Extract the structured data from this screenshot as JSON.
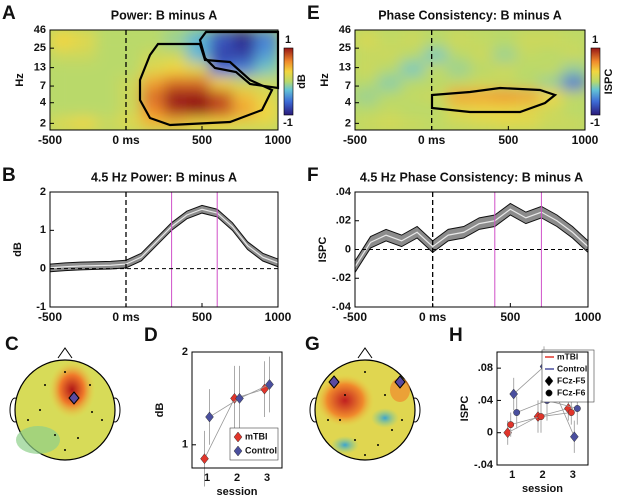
{
  "chart_data": [
    {
      "type": "heatmap",
      "panel": "A",
      "title": "Power: B minus A",
      "ylabel": "Hz",
      "colorbar_label": "dB",
      "xbins": [
        -500,
        -350,
        -200,
        -50,
        100,
        250,
        400,
        550,
        700,
        850,
        1000
      ],
      "ybins": [
        1.6,
        2.5,
        4,
        6.3,
        10,
        16,
        25,
        46
      ],
      "ylog": true,
      "values": [
        [
          0.2,
          0.3,
          0.1,
          0.2,
          0.4,
          0.4,
          0.3,
          0.3,
          0.2,
          0.2
        ],
        [
          0,
          0,
          0,
          0.1,
          0.6,
          0.9,
          1,
          0.8,
          0.5,
          0.3
        ],
        [
          0,
          0,
          0,
          0.1,
          0.7,
          1,
          1,
          0.8,
          0.4,
          0.2
        ],
        [
          0,
          0,
          0,
          0.1,
          0.5,
          0.7,
          0.7,
          0.3,
          0.1,
          0.1
        ],
        [
          0,
          0,
          0,
          0,
          0.2,
          0.3,
          0.2,
          -0.6,
          -0.5,
          -0.2
        ],
        [
          0.1,
          0.1,
          0,
          0,
          0.1,
          0.1,
          -0.3,
          -0.8,
          -0.8,
          -0.4
        ],
        [
          0.3,
          0.2,
          0,
          0,
          0,
          -0.1,
          -0.3,
          -0.7,
          -0.9,
          -0.5
        ]
      ],
      "xlim": [
        -500,
        1000
      ],
      "xticks": [
        -500,
        {
          "value": 0,
          "label": "0 ms"
        },
        500,
        1000
      ],
      "ylim": [
        1.6,
        46
      ],
      "yticks": [
        2,
        4,
        7,
        13,
        25,
        46
      ],
      "clim": [
        -1,
        1
      ],
      "cticks": [
        -1,
        1
      ]
    },
    {
      "type": "heatmap",
      "panel": "E",
      "title": "Phase Consistency: B minus A",
      "ylabel": "Hz",
      "colorbar_label": "ISPC",
      "xbins": [
        -500,
        -350,
        -200,
        -50,
        100,
        250,
        400,
        550,
        700,
        850,
        1000
      ],
      "ybins": [
        1.6,
        2.5,
        4,
        6.3,
        10,
        16,
        25,
        46
      ],
      "ylog": true,
      "values": [
        [
          0.1,
          0.15,
          0.1,
          0.05,
          0.1,
          0.15,
          0.2,
          0.2,
          0.1,
          0.1
        ],
        [
          0,
          0.05,
          0,
          0,
          0.2,
          0.25,
          0.25,
          0.2,
          0.1,
          0
        ],
        [
          -0.1,
          0,
          0.05,
          0.1,
          0.5,
          0.5,
          0.55,
          0.5,
          0.3,
          0.05
        ],
        [
          0,
          -0.15,
          0,
          0,
          0.05,
          0.1,
          0.05,
          0,
          -0.1,
          -0.6
        ],
        [
          0.1,
          0,
          -0.2,
          0.05,
          -0.1,
          0,
          0.1,
          0,
          0.05,
          -0.1
        ],
        [
          0.05,
          0.1,
          0,
          -0.2,
          0,
          0.1,
          -0.1,
          0.05,
          0,
          0.1
        ],
        [
          0.15,
          0.05,
          0.1,
          0,
          0.1,
          0.05,
          0,
          0.1,
          0.1,
          0.05
        ]
      ],
      "xlim": [
        -500,
        1000
      ],
      "xticks": [
        -500,
        {
          "value": 0,
          "label": "0 ms"
        },
        500,
        1000
      ],
      "ylim": [
        1.6,
        46
      ],
      "yticks": [
        2,
        4,
        7,
        13,
        25,
        46
      ],
      "clim": [
        -1,
        1
      ],
      "cticks": [
        -1,
        1
      ]
    },
    {
      "type": "line",
      "panel": "B",
      "title": "4.5 Hz Power: B minus A",
      "ylabel": "dB",
      "x": [
        -500,
        -400,
        -300,
        -200,
        -100,
        0,
        100,
        200,
        300,
        400,
        500,
        600,
        700,
        800,
        900,
        1000
      ],
      "values": [
        0.02,
        0.05,
        0.07,
        0.08,
        0.09,
        0.12,
        0.3,
        0.7,
        1.1,
        1.4,
        1.55,
        1.45,
        1.1,
        0.6,
        0.3,
        0.15
      ],
      "error": 0.1,
      "vlines": [
        300,
        600
      ],
      "xlim": [
        -500,
        1000
      ],
      "xticks": [
        -500,
        {
          "value": 0,
          "label": "0 ms"
        },
        500,
        1000
      ],
      "ylim": [
        -1,
        2
      ],
      "yticks": [
        -1,
        0,
        1,
        2
      ]
    },
    {
      "type": "line",
      "panel": "F",
      "title": "4.5 Hz Phase Consistency: B minus A",
      "ylabel": "ISPC",
      "x": [
        -500,
        -400,
        -300,
        -200,
        -100,
        0,
        100,
        200,
        300,
        400,
        500,
        600,
        700,
        800,
        900,
        1000
      ],
      "values": [
        -0.012,
        0.005,
        0.01,
        0.006,
        0.012,
        0.002,
        0.01,
        0.012,
        0.018,
        0.02,
        0.028,
        0.022,
        0.026,
        0.02,
        0.012,
        0.002
      ],
      "error": 0.004,
      "vlines": [
        400,
        700
      ],
      "xlim": [
        -500,
        1000
      ],
      "xticks": [
        -500,
        {
          "value": 0,
          "label": "0 ms"
        },
        500,
        1000
      ],
      "ylim": [
        -0.04,
        0.04
      ],
      "yticks": [
        {
          "value": -0.04,
          "label": "-.04"
        },
        {
          "value": -0.02,
          "label": "-.02"
        },
        0,
        {
          "value": 0.02,
          "label": ".02"
        },
        {
          "value": 0.04,
          "label": ".04"
        }
      ]
    },
    {
      "type": "topomap",
      "panel": "C"
    },
    {
      "type": "dot",
      "panel": "D",
      "ylabel": "dB",
      "xlabel": "session",
      "categories": [
        "1",
        "2",
        "3"
      ],
      "series": [
        {
          "name": "mTBI",
          "color": "#e0352b",
          "values": [
            0.85,
            1.5,
            1.6
          ],
          "error": [
            0.3,
            0.35,
            0.3
          ]
        },
        {
          "name": "Control",
          "color": "#4a4f9e",
          "values": [
            1.3,
            1.5,
            1.65
          ],
          "error": [
            0.3,
            0.35,
            0.3
          ]
        }
      ],
      "ylim": [
        0.75,
        2
      ],
      "yticks": [
        1,
        2
      ]
    },
    {
      "type": "topomap",
      "panel": "G"
    },
    {
      "type": "groupdot",
      "panel": "H",
      "ylabel": "ISPC",
      "xlabel": "session",
      "categories": [
        "1",
        "2",
        "3"
      ],
      "groups": [
        {
          "name": "mTBI",
          "color": "#e0352b"
        },
        {
          "name": "Control",
          "color": "#4a4f9e"
        }
      ],
      "markers": [
        {
          "name": "FCz-F5",
          "shape": "diamond"
        },
        {
          "name": "FCz-F6",
          "shape": "circle"
        }
      ],
      "values": [
        [
          [
            0,
            0.02,
            0.03
          ],
          [
            0.01,
            0.02,
            0.025
          ]
        ],
        [
          [
            0.048,
            0.082,
            -0.005
          ],
          [
            0.025,
            0.04,
            0.03
          ]
        ]
      ],
      "error": [
        [
          [
            0.015,
            0.02,
            0.015
          ],
          [
            0.015,
            0.02,
            0.015
          ]
        ],
        [
          [
            0.02,
            0.025,
            0.02
          ],
          [
            0.02,
            0.025,
            0.02
          ]
        ]
      ],
      "ylim": [
        -0.04,
        0.1
      ],
      "yticks": [
        {
          "value": -0.04,
          "label": "-.04"
        },
        0,
        {
          "value": 0.04,
          "label": ".04"
        },
        {
          "value": 0.08,
          "label": ".08"
        }
      ]
    }
  ]
}
